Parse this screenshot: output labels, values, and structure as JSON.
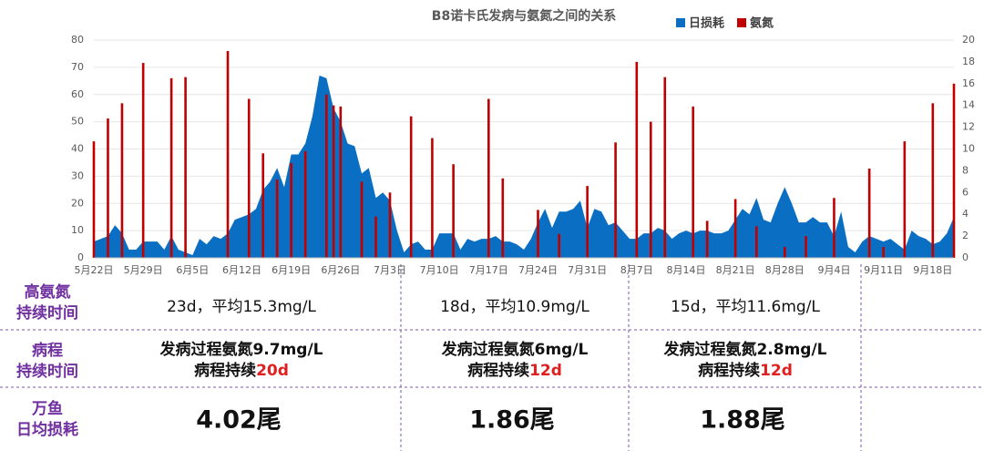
{
  "chart_data": {
    "type": "area_bar",
    "title": "B8诺卡氏发病与氨氮之间的关系",
    "categories": [
      "5月22日",
      null,
      null,
      null,
      null,
      null,
      null,
      "5月29日",
      null,
      null,
      null,
      null,
      null,
      null,
      "6月5日",
      null,
      null,
      null,
      null,
      null,
      null,
      "6月12日",
      null,
      null,
      null,
      null,
      null,
      null,
      "6月19日",
      null,
      null,
      null,
      null,
      null,
      null,
      "6月26日",
      null,
      null,
      null,
      null,
      null,
      null,
      "7月3日",
      null,
      null,
      null,
      null,
      null,
      null,
      "7月10日",
      null,
      null,
      null,
      null,
      null,
      null,
      "7月17日",
      null,
      null,
      null,
      null,
      null,
      null,
      "7月24日",
      null,
      null,
      null,
      null,
      null,
      null,
      "7月31日",
      null,
      null,
      null,
      null,
      null,
      null,
      "8月7日",
      null,
      null,
      null,
      null,
      null,
      null,
      "8月14日",
      null,
      null,
      null,
      null,
      null,
      null,
      "8月21日",
      null,
      null,
      null,
      null,
      null,
      null,
      "8月28日",
      null,
      null,
      null,
      null,
      null,
      null,
      "9月4日",
      null,
      null,
      null,
      null,
      null,
      null,
      "9月11日",
      null,
      null,
      null,
      null,
      null,
      null,
      "9月18日",
      null,
      null,
      null
    ],
    "series": [
      {
        "name": "日损耗",
        "color": "#0a6fc2",
        "kind": "area",
        "values": [
          6,
          7,
          8,
          12,
          9,
          3,
          3,
          6,
          6,
          6,
          3,
          8,
          3,
          2,
          1,
          7,
          5,
          8,
          7,
          9,
          14,
          15,
          16,
          18,
          25,
          28,
          33,
          26,
          38,
          38,
          42,
          52,
          67,
          66,
          55,
          50,
          42,
          41,
          31,
          33,
          22,
          24,
          21,
          10,
          2,
          5,
          6,
          3,
          3,
          9,
          9,
          9,
          3,
          7,
          6,
          7,
          7,
          8,
          6,
          6,
          5,
          3,
          7,
          13,
          18,
          11,
          17,
          17,
          18,
          21,
          11,
          18,
          17,
          12,
          13,
          10,
          7,
          7,
          9,
          9,
          11,
          10,
          7,
          9,
          10,
          9,
          10,
          10,
          9,
          9,
          10,
          14,
          18,
          16,
          22,
          14,
          13,
          20,
          26,
          20,
          13,
          13,
          15,
          13,
          13,
          8,
          17,
          4,
          2,
          6,
          8,
          7,
          6,
          7,
          5,
          3,
          10,
          8,
          7,
          5,
          6,
          9,
          15
        ]
      },
      {
        "name": "氨氮",
        "color": "#c00000",
        "kind": "bar",
        "axis": "y2",
        "values": [
          10.7,
          null,
          12.8,
          null,
          14.2,
          null,
          null,
          17.9,
          null,
          null,
          null,
          16.5,
          null,
          16.6,
          null,
          null,
          null,
          null,
          null,
          19,
          null,
          null,
          14.6,
          null,
          9.6,
          null,
          7.2,
          null,
          8.7,
          null,
          9.8,
          null,
          null,
          15,
          14,
          13.9,
          null,
          null,
          7,
          null,
          3.8,
          null,
          6,
          null,
          null,
          13,
          null,
          null,
          11,
          null,
          null,
          8.6,
          null,
          null,
          null,
          null,
          14.6,
          null,
          7.3,
          null,
          null,
          null,
          null,
          4.4,
          null,
          null,
          2.2,
          null,
          null,
          null,
          6.6,
          null,
          null,
          null,
          10.6,
          null,
          null,
          18,
          null,
          12.5,
          null,
          16.6,
          null,
          null,
          null,
          13.9,
          null,
          3.4,
          null,
          null,
          null,
          5.4,
          null,
          null,
          2.9,
          null,
          null,
          null,
          1,
          null,
          null,
          2,
          null,
          null,
          null,
          5.5,
          null,
          null,
          null,
          null,
          8.2,
          null,
          1,
          null,
          null,
          10.7,
          null,
          null,
          null,
          14.2,
          null,
          null,
          16
        ]
      }
    ],
    "ylim": [
      0,
      80
    ],
    "yticks": [
      0,
      10,
      20,
      30,
      40,
      50,
      60,
      70,
      80
    ],
    "y2lim": [
      0,
      20
    ],
    "y2ticks": [
      0,
      2,
      4,
      6,
      8,
      10,
      12,
      14,
      16,
      18,
      20
    ],
    "legend": "top-right"
  },
  "table": {
    "rows": [
      {
        "label": [
          "高氨氮",
          "持续时间"
        ],
        "cells": [
          "23d，平均15.3mg/L",
          "18d，平均10.9mg/L",
          "15d，平均11.6mg/L"
        ]
      },
      {
        "label": [
          "病程",
          "持续时间"
        ],
        "cells": [
          {
            "line1": "发病过程氨氮9.7mg/L",
            "line2": "病程持续",
            "highlight": "20d"
          },
          {
            "line1": "发病过程氨氮6mg/L",
            "line2": "病程持续",
            "highlight": "12d"
          },
          {
            "line1": "发病过程氨氮2.8mg/L",
            "line2": "病程持续",
            "highlight": "12d"
          }
        ]
      },
      {
        "label": [
          "万鱼",
          "日均损耗"
        ],
        "cells": [
          "4.02尾",
          "1.86尾",
          "1.88尾"
        ]
      }
    ]
  }
}
